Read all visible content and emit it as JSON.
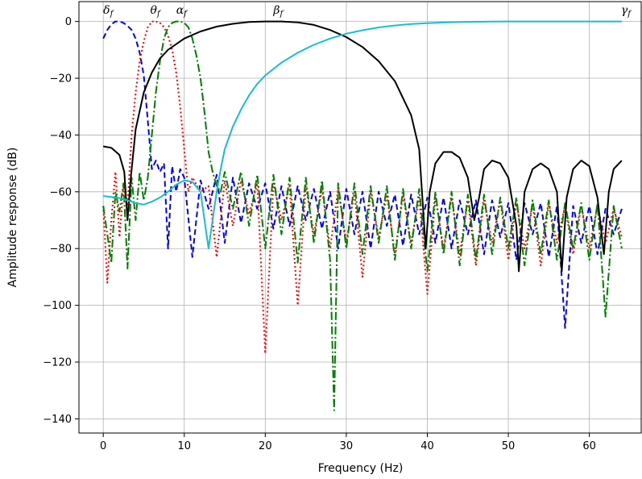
{
  "chart_data": {
    "type": "line",
    "xlabel": "Frequency (Hz)",
    "ylabel": "Amplitude response (dB)",
    "xlim": [
      -3,
      66.5
    ],
    "ylim": [
      -145,
      7
    ],
    "xticks": [
      0,
      10,
      20,
      30,
      40,
      50,
      60
    ],
    "yticks": [
      0,
      -20,
      -40,
      -60,
      -80,
      -100,
      -120,
      -140
    ],
    "grid": true,
    "band_labels": [
      {
        "sym": "δ",
        "sub": "f",
        "x": 0.0
      },
      {
        "sym": "θ",
        "sub": "f",
        "x": 5.8
      },
      {
        "sym": "α",
        "sub": "f",
        "x": 9.0
      },
      {
        "sym": "β",
        "sub": "f",
        "x": 21.0
      },
      {
        "sym": "γ",
        "sub": "f",
        "x": 64.5
      }
    ],
    "series": [
      {
        "key": "delta",
        "color": "#0000ff",
        "dash": "7,4",
        "x": [
          0,
          0.5,
          1,
          1.5,
          2,
          2.5,
          3,
          3.5,
          4,
          4.5,
          5,
          5.5,
          6,
          6.5,
          7,
          7.5,
          8,
          8.5,
          9,
          9.5,
          10,
          11,
          12,
          13,
          14,
          15,
          16,
          17,
          18,
          19,
          20,
          21,
          22,
          23,
          24,
          25,
          26,
          27,
          28,
          29,
          30,
          31,
          32,
          33,
          34,
          35,
          36,
          37,
          38,
          39,
          40,
          41,
          42,
          43,
          44,
          45,
          46,
          47,
          48,
          49,
          50,
          51,
          52,
          53,
          54,
          55,
          56,
          57,
          58,
          59,
          60,
          61,
          62,
          63,
          64
        ],
        "y": [
          -6,
          -3,
          -1,
          0,
          0,
          -0.5,
          -1.5,
          -3,
          -6,
          -11,
          -19,
          -35,
          -52,
          -49,
          -53,
          -50,
          -80,
          -51,
          -60,
          -52,
          -55,
          -83,
          -56,
          -66,
          -54,
          -78,
          -55,
          -71,
          -57,
          -66,
          -57,
          -73,
          -58,
          -72,
          -58,
          -70,
          -59,
          -73,
          -60,
          -80,
          -59,
          -75,
          -60,
          -80,
          -60,
          -72,
          -61,
          -79,
          -61,
          -75,
          -62,
          -78,
          -62,
          -80,
          -63,
          -75,
          -63,
          -82,
          -63,
          -76,
          -64,
          -84,
          -64,
          -75,
          -64,
          -83,
          -65,
          -108,
          -65,
          -78,
          -65,
          -82,
          -66,
          -75,
          -66
        ]
      },
      {
        "key": "theta",
        "color": "#ff0000",
        "dash": "2,3",
        "x": [
          0,
          0.5,
          1,
          1.5,
          2,
          2.5,
          3,
          3.5,
          4,
          4.5,
          5,
          5.5,
          6,
          6.5,
          7,
          7.5,
          8,
          8.5,
          9,
          9.5,
          10,
          10.5,
          11,
          12,
          13,
          14,
          15,
          16,
          17,
          18,
          19,
          20,
          21,
          22,
          23,
          24,
          25,
          26,
          27,
          28,
          29,
          30,
          31,
          32,
          33,
          34,
          35,
          36,
          37,
          38,
          39,
          40,
          41,
          42,
          43,
          44,
          45,
          46,
          47,
          48,
          49,
          50,
          51,
          52,
          53,
          54,
          55,
          56,
          57,
          58,
          59,
          60,
          61,
          62,
          63,
          64
        ],
        "y": [
          -65,
          -92,
          -70,
          -53,
          -76,
          -58,
          -65,
          -40,
          -25,
          -14,
          -7,
          -2,
          0,
          0,
          -0.5,
          -2,
          -5,
          -10,
          -18,
          -30,
          -45,
          -60,
          -55,
          -60,
          -58,
          -83,
          -56,
          -72,
          -56,
          -68,
          -57,
          -117,
          -57,
          -70,
          -58,
          -100,
          -58,
          -75,
          -59,
          -80,
          -59,
          -78,
          -60,
          -90,
          -60,
          -76,
          -61,
          -82,
          -61,
          -78,
          -62,
          -96,
          -62,
          -80,
          -62,
          -82,
          -63,
          -86,
          -63,
          -78,
          -63,
          -84,
          -64,
          -80,
          -64,
          -86,
          -64,
          -78,
          -65,
          -82,
          -65,
          -80,
          -65,
          -78,
          -66,
          -76
        ]
      },
      {
        "key": "alpha",
        "color": "#008000",
        "dash": "10,3,2,3",
        "x": [
          0,
          0.5,
          1,
          1.5,
          2,
          2.5,
          3,
          3.5,
          4,
          4.5,
          5,
          5.5,
          6,
          6.5,
          7,
          7.5,
          8,
          8.5,
          9,
          9.5,
          10,
          10.5,
          11,
          11.5,
          12,
          12.5,
          13,
          13.5,
          14,
          14.5,
          15,
          16,
          17,
          18,
          19,
          20,
          21,
          22,
          23,
          24,
          25,
          26,
          27,
          28,
          28.5,
          29,
          30,
          31,
          32,
          33,
          34,
          35,
          36,
          37,
          38,
          39,
          40,
          41,
          42,
          43,
          44,
          45,
          46,
          47,
          48,
          49,
          50,
          51,
          52,
          53,
          54,
          55,
          56,
          57,
          58,
          59,
          60,
          61,
          62,
          63,
          64
        ],
        "y": [
          -65,
          -75,
          -85,
          -60,
          -67,
          -57,
          -87,
          -55,
          -70,
          -53,
          -63,
          -55,
          -40,
          -25,
          -14,
          -6,
          -2,
          -0.5,
          0,
          0,
          -0.5,
          -2,
          -6,
          -12,
          -20,
          -32,
          -46,
          -53,
          -58,
          -60,
          -53,
          -66,
          -53,
          -72,
          -54,
          -80,
          -54,
          -75,
          -55,
          -85,
          -55,
          -78,
          -56,
          -84,
          -137,
          -57,
          -80,
          -57,
          -82,
          -58,
          -78,
          -58,
          -84,
          -59,
          -80,
          -59,
          -88,
          -60,
          -82,
          -60,
          -86,
          -61,
          -84,
          -61,
          -82,
          -62,
          -80,
          -62,
          -86,
          -63,
          -82,
          -63,
          -84,
          -64,
          -80,
          -64,
          -84,
          -64,
          -104,
          -65,
          -80
        ]
      },
      {
        "key": "beta",
        "color": "#000000",
        "dash": "",
        "x": [
          0,
          1,
          2,
          2.6,
          3,
          3.4,
          4,
          5,
          6,
          7,
          8,
          10,
          12,
          14,
          16,
          18,
          20,
          21,
          22,
          24,
          26,
          28,
          30,
          32,
          34,
          36,
          38,
          39,
          39.8,
          40.3,
          41,
          42,
          43,
          44,
          45,
          45.8,
          46.4,
          47,
          48,
          49,
          50,
          51,
          51.3,
          52,
          53,
          54,
          55,
          56,
          56.6,
          57.2,
          58,
          59,
          60,
          61,
          61.8,
          62.4,
          63,
          64
        ],
        "y": [
          -44,
          -44.5,
          -47,
          -53,
          -70,
          -55,
          -38,
          -25,
          -18,
          -13,
          -10,
          -6,
          -3.5,
          -1.8,
          -0.8,
          -0.2,
          0,
          0,
          0,
          -0.3,
          -1.2,
          -3,
          -5.5,
          -9,
          -14,
          -21,
          -33,
          -45,
          -80,
          -60,
          -50,
          -46,
          -46,
          -48,
          -55,
          -70,
          -62,
          -52,
          -49,
          -50,
          -55,
          -72,
          -88,
          -60,
          -52,
          -50,
          -52,
          -60,
          -88,
          -62,
          -52,
          -49,
          -51,
          -62,
          -82,
          -60,
          -52,
          -49
        ]
      },
      {
        "key": "gamma",
        "color": "#17becf",
        "dash": "",
        "x": [
          0,
          1,
          2,
          3,
          4,
          5,
          6,
          7,
          8,
          9,
          10,
          11,
          12,
          12.5,
          13,
          13.5,
          14,
          14.5,
          15,
          16,
          17,
          18,
          19,
          20,
          22,
          24,
          26,
          28,
          30,
          32,
          34,
          36,
          38,
          40,
          42,
          44,
          46,
          48,
          50,
          52,
          54,
          56,
          58,
          60,
          62,
          64
        ],
        "y": [
          -61.5,
          -61.8,
          -62.2,
          -63,
          -64,
          -64.5,
          -63.5,
          -62,
          -60,
          -57.5,
          -56,
          -56.5,
          -60,
          -70,
          -80,
          -70,
          -60,
          -52,
          -45,
          -37,
          -31,
          -26,
          -22,
          -19,
          -14.5,
          -11,
          -8.2,
          -6,
          -4.3,
          -3.1,
          -2.1,
          -1.4,
          -0.9,
          -0.6,
          -0.35,
          -0.2,
          -0.1,
          -0.05,
          0,
          0,
          0,
          0,
          0,
          0,
          0,
          0
        ]
      }
    ]
  }
}
